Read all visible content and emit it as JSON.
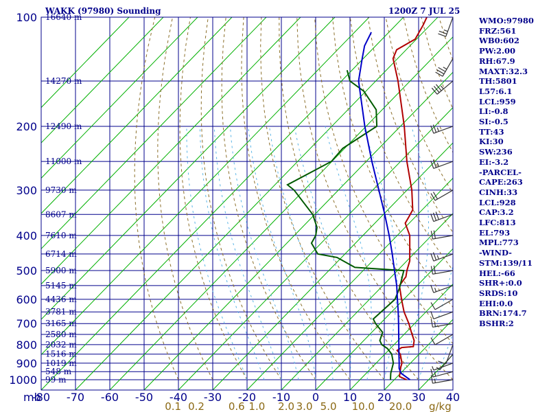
{
  "header": {
    "station_title": "WAKK (97980) Sounding",
    "time_label": "1200Z  7 JUL 25"
  },
  "indices": [
    "WMO:97980",
    "FRZ:561",
    "WB0:602",
    "PW:2.00",
    "RH:67.9",
    "MAXT:32.3",
    "TH:5801",
    "L57:6.1",
    "LCL:959",
    "LI:-0.8",
    "SI:-0.5",
    "TT:43",
    "KI:30",
    "SW:236",
    "EI:-3.2",
    "-PARCEL-",
    "CAPE:263",
    "CINH:33",
    "LCL:928",
    "CAP:3.2",
    "LFC:813",
    "EL:793",
    "MPL:773",
    "-WIND-",
    "STM:139/11",
    "HEL:-66",
    "SHR+:0.0",
    "SRDS:10",
    "EHI:0.0",
    "BRN:174.7",
    "BSHR:2"
  ],
  "colors": {
    "frame": "#00008b",
    "isobar": "#00008b",
    "isotherm": "#00b000",
    "dry_adiabat": "#8b6f2a",
    "moist_adiabat": "#5ab4e6",
    "temperature": "#b00000",
    "dewpoint": "#005a00",
    "parcel": "#0000c8",
    "wind_barb": "#333333",
    "mixing_ratio_label": "#8b6914"
  },
  "chart_data": {
    "type": "skew-t",
    "title": "WAKK (97980) Sounding",
    "xlabel": "",
    "ylabel": "mb",
    "xlim": [
      -80,
      40
    ],
    "ylim": [
      1000,
      100
    ],
    "y_scale": "log",
    "pressure_levels_mb": [
      1000,
      900,
      800,
      700,
      600,
      500,
      400,
      300,
      200,
      100
    ],
    "pressure_tick_labels": [
      "1000",
      "900",
      "800",
      "700",
      "600",
      "500",
      "400",
      "300",
      "200",
      "100"
    ],
    "temperature_ticks_c": [
      -80,
      -70,
      -60,
      -50,
      -40,
      -30,
      -20,
      -10,
      0,
      10,
      20,
      30,
      40
    ],
    "temperature_tick_labels": [
      "-80",
      "-70",
      "-60",
      "-50",
      "-40",
      "-30",
      "-20",
      "-10",
      "0",
      "10",
      "20",
      "30",
      "40"
    ],
    "mixing_ratio_labels": [
      "0.1",
      "0.2",
      "0.6",
      "1.0",
      "2.0",
      "3.0",
      "5.0",
      "10.0",
      "20.0",
      "g/kg"
    ],
    "height_labels": [
      {
        "p": 1000,
        "label": "99 m"
      },
      {
        "p": 950,
        "label": "548 m"
      },
      {
        "p": 900,
        "label": "1019 m"
      },
      {
        "p": 850,
        "label": "1516 m"
      },
      {
        "p": 800,
        "label": "2032 m"
      },
      {
        "p": 750,
        "label": "2580 m"
      },
      {
        "p": 700,
        "label": "3165 m"
      },
      {
        "p": 650,
        "label": "3781 m"
      },
      {
        "p": 600,
        "label": "4436 m"
      },
      {
        "p": 550,
        "label": "5145 m"
      },
      {
        "p": 500,
        "label": "5900 m"
      },
      {
        "p": 450,
        "label": "6714 m"
      },
      {
        "p": 400,
        "label": "7610 m"
      },
      {
        "p": 350,
        "label": "8607 m"
      },
      {
        "p": 300,
        "label": "9730 m"
      },
      {
        "p": 250,
        "label": "11000 m"
      },
      {
        "p": 200,
        "label": "12490 m"
      },
      {
        "p": 150,
        "label": "14270 m"
      },
      {
        "p": 100,
        "label": "16640 m"
      }
    ],
    "series": [
      {
        "name": "",
        "kind": "temperature",
        "points": [
          {
            "p": 1000,
            "t": 26.5
          },
          {
            "p": 980,
            "t": 23.5
          },
          {
            "p": 925,
            "t": 21.2
          },
          {
            "p": 900,
            "t": 20.3
          },
          {
            "p": 850,
            "t": 17.2
          },
          {
            "p": 830,
            "t": 15.2
          },
          {
            "p": 815,
            "t": 15.7
          },
          {
            "p": 810,
            "t": 18.8
          },
          {
            "p": 780,
            "t": 17.3
          },
          {
            "p": 740,
            "t": 14.1
          },
          {
            "p": 700,
            "t": 10.8
          },
          {
            "p": 650,
            "t": 6.0
          },
          {
            "p": 600,
            "t": 1.6
          },
          {
            "p": 550,
            "t": -3.0
          },
          {
            "p": 520,
            "t": -3.7
          },
          {
            "p": 500,
            "t": -5.2
          },
          {
            "p": 470,
            "t": -7.2
          },
          {
            "p": 450,
            "t": -9.2
          },
          {
            "p": 400,
            "t": -14.6
          },
          {
            "p": 370,
            "t": -19.5
          },
          {
            "p": 355,
            "t": -20.3
          },
          {
            "p": 340,
            "t": -21.2
          },
          {
            "p": 300,
            "t": -27.2
          },
          {
            "p": 250,
            "t": -37.0
          },
          {
            "p": 200,
            "t": -48.0
          },
          {
            "p": 150,
            "t": -63.0
          },
          {
            "p": 130,
            "t": -71.0
          },
          {
            "p": 123,
            "t": -72.5
          },
          {
            "p": 115,
            "t": -70.2
          },
          {
            "p": 105,
            "t": -72.0
          },
          {
            "p": 100,
            "t": -73.2
          }
        ]
      },
      {
        "name": "",
        "kind": "dewpoint",
        "points": [
          {
            "p": 1000,
            "t": 21.8
          },
          {
            "p": 960,
            "t": 20.0
          },
          {
            "p": 900,
            "t": 17.8
          },
          {
            "p": 850,
            "t": 14.7
          },
          {
            "p": 820,
            "t": 11.8
          },
          {
            "p": 800,
            "t": 9.0
          },
          {
            "p": 780,
            "t": 7.3
          },
          {
            "p": 740,
            "t": 5.7
          },
          {
            "p": 700,
            "t": 1.1
          },
          {
            "p": 680,
            "t": -0.9
          },
          {
            "p": 600,
            "t": -0.3
          },
          {
            "p": 560,
            "t": -2.2
          },
          {
            "p": 500,
            "t": -6.1
          },
          {
            "p": 490,
            "t": -21.3
          },
          {
            "p": 460,
            "t": -29.4
          },
          {
            "p": 450,
            "t": -36.0
          },
          {
            "p": 420,
            "t": -41.0
          },
          {
            "p": 400,
            "t": -42.0
          },
          {
            "p": 380,
            "t": -44.0
          },
          {
            "p": 350,
            "t": -49.0
          },
          {
            "p": 300,
            "t": -61.5
          },
          {
            "p": 290,
            "t": -65.0
          },
          {
            "p": 250,
            "t": -59.0
          },
          {
            "p": 230,
            "t": -59.5
          },
          {
            "p": 200,
            "t": -56.0
          },
          {
            "p": 180,
            "t": -61.0
          },
          {
            "p": 160,
            "t": -70.0
          },
          {
            "p": 150,
            "t": -77.0
          },
          {
            "p": 140,
            "t": -81.0
          }
        ]
      },
      {
        "name": "",
        "kind": "parcel",
        "points": [
          {
            "p": 1000,
            "t": 27.5
          },
          {
            "p": 960,
            "t": 23.0
          },
          {
            "p": 930,
            "t": 21.0
          },
          {
            "p": 900,
            "t": 19.5
          },
          {
            "p": 850,
            "t": 16.8
          },
          {
            "p": 800,
            "t": 14.0
          },
          {
            "p": 750,
            "t": 11.0
          },
          {
            "p": 700,
            "t": 7.8
          },
          {
            "p": 650,
            "t": 4.3
          },
          {
            "p": 600,
            "t": 0.4
          },
          {
            "p": 550,
            "t": -3.8
          },
          {
            "p": 500,
            "t": -8.8
          },
          {
            "p": 450,
            "t": -14.3
          },
          {
            "p": 400,
            "t": -20.6
          },
          {
            "p": 350,
            "t": -28.0
          },
          {
            "p": 300,
            "t": -36.8
          },
          {
            "p": 250,
            "t": -47.2
          },
          {
            "p": 200,
            "t": -59.5
          },
          {
            "p": 150,
            "t": -74.5
          },
          {
            "p": 130,
            "t": -80.0
          },
          {
            "p": 120,
            "t": -83.0
          },
          {
            "p": 110,
            "t": -85.0
          }
        ]
      }
    ],
    "wind_barbs": [
      {
        "p": 1000,
        "dir": 260,
        "spd": 15
      },
      {
        "p": 950,
        "dir": 255,
        "spd": 15
      },
      {
        "p": 900,
        "dir": 250,
        "spd": 5
      },
      {
        "p": 850,
        "dir": 220,
        "spd": 5
      },
      {
        "p": 800,
        "dir": 200,
        "spd": 10
      },
      {
        "p": 750,
        "dir": 240,
        "spd": 10
      },
      {
        "p": 700,
        "dir": 260,
        "spd": 15
      },
      {
        "p": 650,
        "dir": 250,
        "spd": 10
      },
      {
        "p": 600,
        "dir": 240,
        "spd": 10
      },
      {
        "p": 550,
        "dir": 250,
        "spd": 15
      },
      {
        "p": 500,
        "dir": 260,
        "spd": 20
      },
      {
        "p": 450,
        "dir": 250,
        "spd": 25
      },
      {
        "p": 400,
        "dir": 260,
        "spd": 20
      },
      {
        "p": 350,
        "dir": 250,
        "spd": 30
      },
      {
        "p": 300,
        "dir": 240,
        "spd": 20
      },
      {
        "p": 250,
        "dir": 250,
        "spd": 25
      },
      {
        "p": 200,
        "dir": 250,
        "spd": 25
      },
      {
        "p": 150,
        "dir": 230,
        "spd": 35
      },
      {
        "p": 130,
        "dir": 210,
        "spd": 35
      },
      {
        "p": 100,
        "dir": 200,
        "spd": 25
      }
    ]
  }
}
